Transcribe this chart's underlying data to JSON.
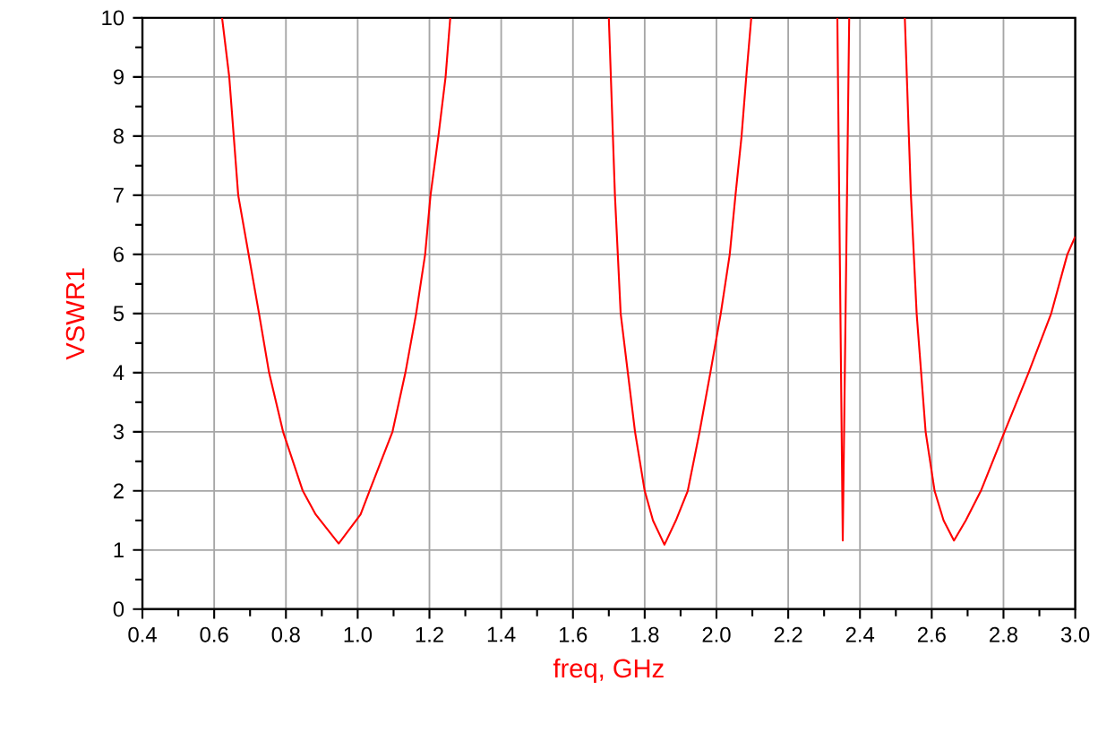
{
  "chart_data": {
    "type": "line",
    "xlabel": "freq, GHz",
    "ylabel": "VSWR1",
    "xlim": [
      0.4,
      3.0
    ],
    "ylim": [
      0,
      10
    ],
    "xticks": [
      {
        "value": 0.4,
        "label": "0.4"
      },
      {
        "value": 0.6,
        "label": "0.6"
      },
      {
        "value": 0.8,
        "label": "0.8"
      },
      {
        "value": 1.0,
        "label": "1.0"
      },
      {
        "value": 1.2,
        "label": "1.2"
      },
      {
        "value": 1.4,
        "label": "1.4"
      },
      {
        "value": 1.6,
        "label": "1.6"
      },
      {
        "value": 1.8,
        "label": "1.8"
      },
      {
        "value": 2.0,
        "label": "2.0"
      },
      {
        "value": 2.2,
        "label": "2.2"
      },
      {
        "value": 2.4,
        "label": "2.4"
      },
      {
        "value": 2.6,
        "label": "2.6"
      },
      {
        "value": 2.8,
        "label": "2.8"
      },
      {
        "value": 3.0,
        "label": "3.0"
      }
    ],
    "yticks": [
      0,
      1,
      2,
      3,
      4,
      5,
      6,
      7,
      8,
      9,
      10
    ],
    "grid": true,
    "marker": "none",
    "line_style": "solid",
    "series": [
      {
        "color": "#ff0000",
        "x": [
          0.622,
          0.642,
          0.667,
          0.725,
          0.753,
          0.792,
          0.847,
          0.883,
          0.947,
          1.008,
          1.033,
          1.097,
          1.133,
          1.163,
          1.188,
          1.203,
          1.225,
          1.245,
          1.258,
          1.4,
          1.7,
          1.717,
          1.733,
          1.753,
          1.773,
          1.8,
          1.823,
          1.855,
          1.887,
          1.92,
          1.953,
          1.983,
          2.012,
          2.037,
          2.053,
          2.07,
          2.083,
          2.097,
          2.2,
          2.337,
          2.352,
          2.37,
          2.45,
          2.525,
          2.542,
          2.558,
          2.583,
          2.608,
          2.633,
          2.662,
          2.695,
          2.737,
          2.803,
          2.87,
          2.933,
          2.978,
          3.0
        ],
        "values": [
          10,
          9,
          7,
          5,
          4,
          3,
          2,
          1.6,
          1.11,
          1.6,
          2,
          3,
          4,
          5,
          6,
          7,
          8,
          9,
          10,
          null,
          10,
          7,
          5,
          4,
          3,
          2,
          1.5,
          1.09,
          1.5,
          2,
          3,
          4,
          5,
          6,
          7,
          8,
          9,
          10,
          null,
          10,
          1.16,
          10,
          null,
          10,
          7,
          5,
          3,
          2,
          1.5,
          1.16,
          1.5,
          2,
          3,
          4,
          5,
          6,
          6.3
        ]
      }
    ]
  }
}
